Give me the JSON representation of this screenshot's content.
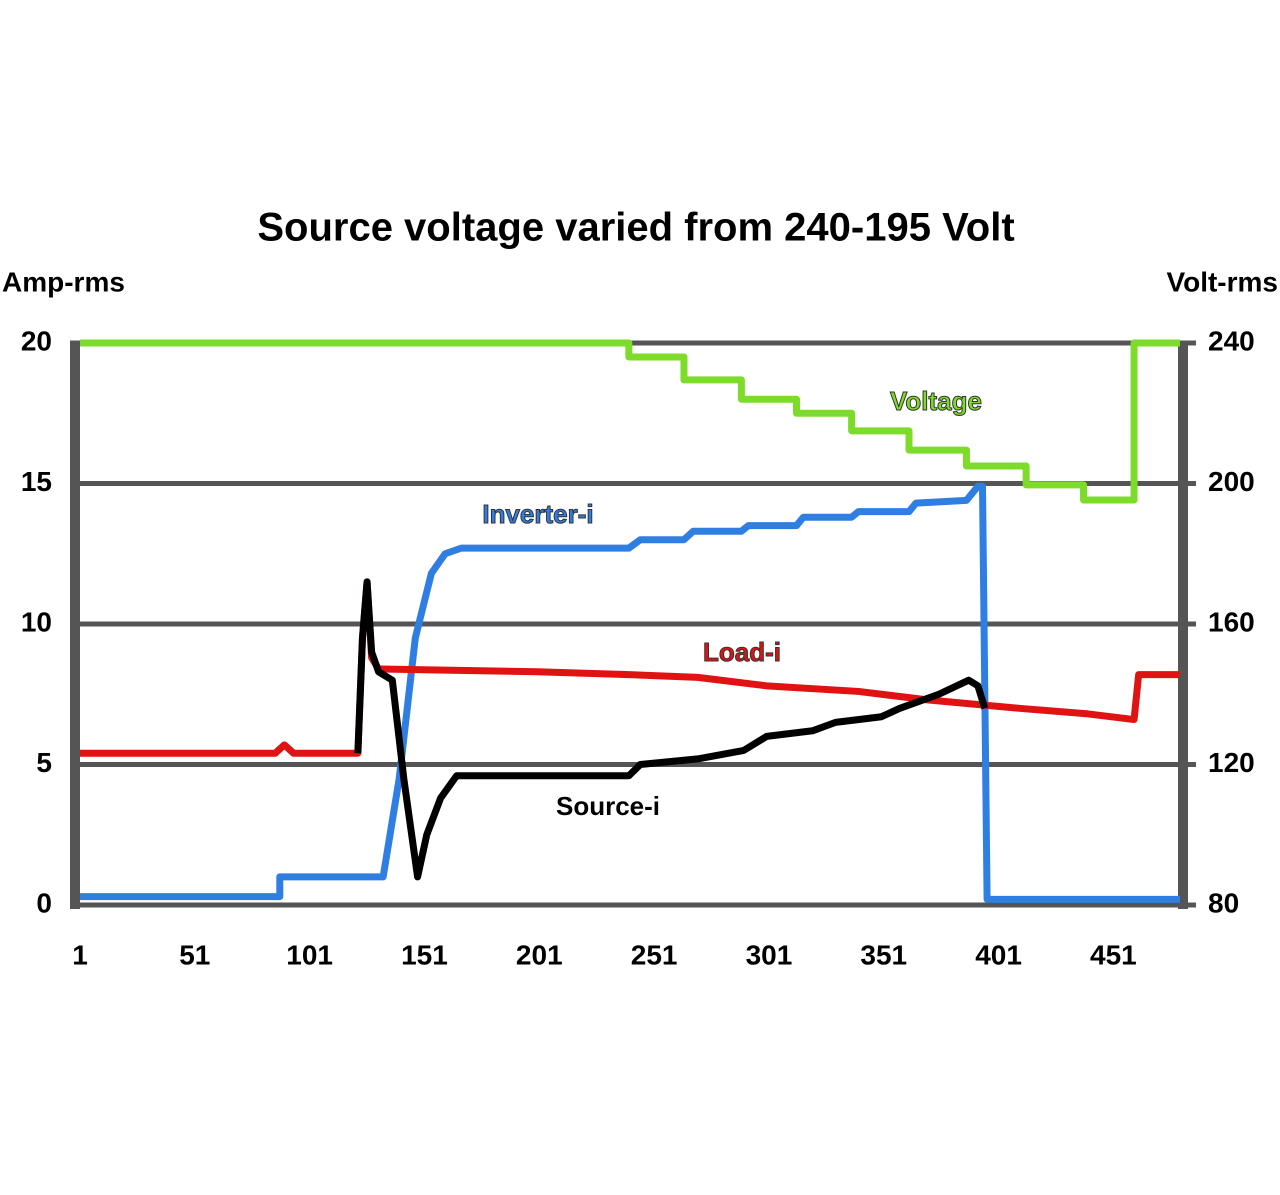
{
  "chart_data": {
    "type": "line",
    "title": "Source voltage varied from 240-195 Volt",
    "y_label": "Amp-rms",
    "y2_label": "Volt-rms",
    "xlim": [
      1,
      480
    ],
    "xticks": [
      1,
      51,
      101,
      151,
      201,
      251,
      301,
      351,
      401,
      451
    ],
    "ylim": [
      0,
      20
    ],
    "yticks": [
      0,
      5,
      10,
      15,
      20
    ],
    "y2lim": [
      80,
      240
    ],
    "y2ticks": [
      80,
      120,
      160,
      200,
      240
    ],
    "grid": true,
    "series": [
      {
        "name": "Voltage",
        "color": "#7ddc2a",
        "axis": "y2",
        "x": [
          1,
          240,
          240,
          264,
          264,
          289,
          289,
          313,
          313,
          337,
          337,
          362,
          362,
          387,
          387,
          413,
          413,
          438,
          438,
          460,
          460,
          480
        ],
        "values": [
          240,
          240,
          236,
          236,
          229.5,
          229.5,
          224,
          224,
          220,
          220,
          215,
          215,
          209.5,
          209.5,
          205,
          205,
          199.6,
          199.6,
          195.3,
          195.3,
          240,
          240
        ]
      },
      {
        "name": "Inverter-i",
        "color": "#2f7ee2",
        "x": [
          1,
          88,
          88,
          133,
          140,
          147,
          154,
          160,
          167,
          240,
          245,
          264,
          268,
          289,
          292,
          313,
          316,
          337,
          340,
          362,
          365,
          387,
          392,
          394,
          396,
          480
        ],
        "values": [
          0.3,
          0.3,
          1.0,
          1.0,
          4.5,
          9.5,
          11.8,
          12.5,
          12.7,
          12.7,
          13.0,
          13.0,
          13.3,
          13.3,
          13.5,
          13.5,
          13.8,
          13.8,
          14.0,
          14.0,
          14.3,
          14.4,
          14.9,
          14.9,
          0.2,
          0.2
        ]
      },
      {
        "name": "Load-i",
        "color": "#e01212",
        "x": [
          1,
          86,
          90,
          94,
          122,
          124,
          126,
          128,
          131,
          200,
          240,
          270,
          300,
          340,
          370,
          410,
          440,
          460,
          462,
          480
        ],
        "values": [
          5.4,
          5.4,
          5.7,
          5.4,
          5.4,
          9.5,
          11.5,
          8.8,
          8.4,
          8.3,
          8.2,
          8.1,
          7.8,
          7.6,
          7.3,
          7.0,
          6.8,
          6.6,
          8.2,
          8.2
        ]
      },
      {
        "name": "Source-i",
        "color": "#000000",
        "x": [
          122,
          124,
          126,
          128,
          131,
          137,
          142,
          148,
          152,
          158,
          165,
          240,
          245,
          270,
          290,
          300,
          320,
          330,
          350,
          358,
          375,
          388,
          392,
          395
        ],
        "values": [
          5.4,
          9.5,
          11.5,
          9.0,
          8.3,
          8.0,
          4.5,
          1.0,
          2.5,
          3.8,
          4.6,
          4.6,
          5.0,
          5.2,
          5.5,
          6.0,
          6.2,
          6.5,
          6.7,
          7.0,
          7.5,
          8.0,
          7.8,
          7.0
        ]
      }
    ]
  }
}
